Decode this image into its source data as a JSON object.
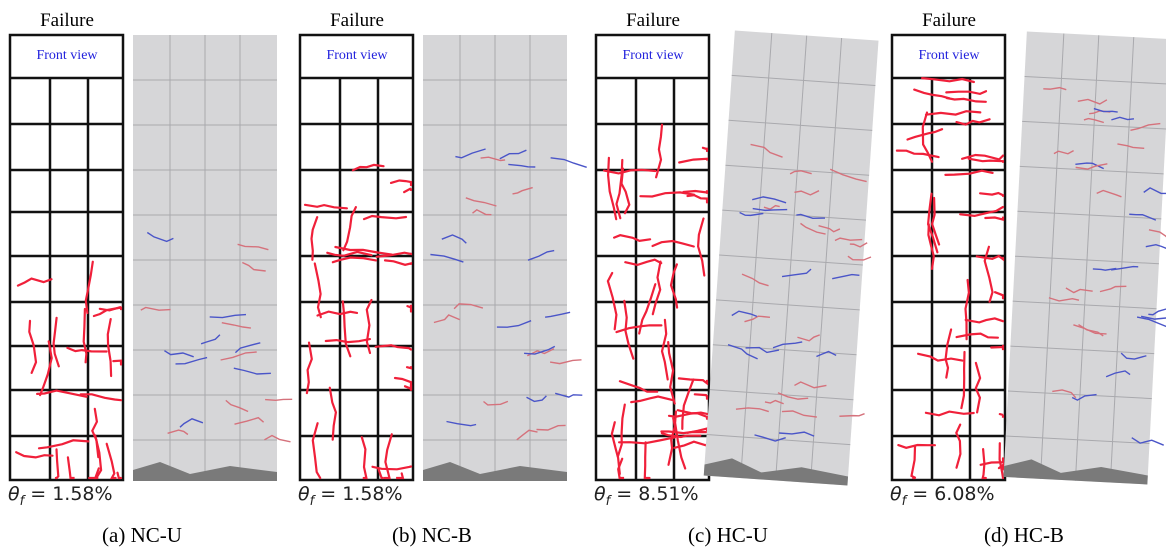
{
  "panels": [
    {
      "failure": "Failure",
      "front_view": "Front view",
      "theta": "θ",
      "theta_sub": "f",
      "drift": " = 1.58%",
      "caption": "(a) NC-U"
    },
    {
      "failure": "Failure",
      "front_view": "Front view",
      "theta": "θ",
      "theta_sub": "f",
      "drift": " = 1.58%",
      "caption": "(b) NC-B"
    },
    {
      "failure": "Failure",
      "front_view": "Front view",
      "theta": "θ",
      "theta_sub": "f",
      "drift": " = 8.51%",
      "caption": "(c) HC-U"
    },
    {
      "failure": "Failure",
      "front_view": "Front view",
      "theta": "θ",
      "theta_sub": "f",
      "drift": " = 6.08%",
      "caption": "(d) HC-B"
    }
  ]
}
